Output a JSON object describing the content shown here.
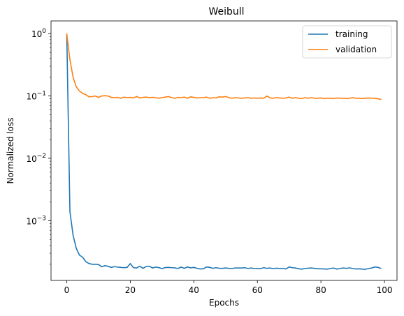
{
  "chart_data": {
    "type": "line",
    "title": "Weibull",
    "xlabel": "Epochs",
    "ylabel": "Normalized loss",
    "xlim": [
      -4.95,
      103.95
    ],
    "ylim": [
      0.00011,
      1.6
    ],
    "yscale": "log",
    "xticks": [
      0,
      20,
      40,
      60,
      80,
      100
    ],
    "yticks": [
      {
        "value": 0.001,
        "base": "10",
        "exp": "−3"
      },
      {
        "value": 0.01,
        "base": "10",
        "exp": "−2"
      },
      {
        "value": 0.1,
        "base": "10",
        "exp": "−1"
      },
      {
        "value": 1,
        "base": "10",
        "exp": "0"
      }
    ],
    "grid": false,
    "legend": "top-right",
    "series": [
      {
        "name": "training",
        "color": "#1f77b4",
        "x": [
          0,
          1,
          2,
          3,
          4,
          5,
          6,
          7,
          8,
          9,
          10,
          11,
          12,
          13,
          14,
          15,
          16,
          17,
          18,
          19,
          20,
          21,
          22,
          23,
          24,
          25,
          26,
          27,
          28,
          29,
          30,
          31,
          32,
          33,
          34,
          35,
          36,
          37,
          38,
          39,
          40,
          41,
          42,
          43,
          44,
          45,
          46,
          47,
          48,
          49,
          50,
          51,
          52,
          53,
          54,
          55,
          56,
          57,
          58,
          59,
          60,
          61,
          62,
          63,
          64,
          65,
          66,
          67,
          68,
          69,
          70,
          71,
          72,
          73,
          74,
          75,
          76,
          77,
          78,
          79,
          80,
          81,
          82,
          83,
          84,
          85,
          86,
          87,
          88,
          89,
          90,
          91,
          92,
          93,
          94,
          95,
          96,
          97,
          98,
          99
        ],
        "y": [
          1.0,
          0.0014,
          0.00058,
          0.00036,
          0.00028,
          0.00026,
          0.00022,
          0.000205,
          0.0002,
          0.0002,
          0.000198,
          0.000182,
          0.00019,
          0.000185,
          0.000178,
          0.000183,
          0.00018,
          0.000178,
          0.000176,
          0.000178,
          0.000205,
          0.000176,
          0.000174,
          0.000186,
          0.000172,
          0.000184,
          0.000186,
          0.000174,
          0.00018,
          0.000177,
          0.00017,
          0.000177,
          0.000178,
          0.000176,
          0.000175,
          0.000171,
          0.00018,
          0.000172,
          0.000181,
          0.000175,
          0.000178,
          0.000172,
          0.000168,
          0.000169,
          0.000181,
          0.000178,
          0.000172,
          0.000176,
          0.000172,
          0.000172,
          0.000174,
          0.000172,
          0.000171,
          0.000174,
          0.000174,
          0.000174,
          0.000176,
          0.000171,
          0.000174,
          0.000171,
          0.00017,
          0.00017,
          0.000176,
          0.000172,
          0.000174,
          0.00017,
          0.000173,
          0.000171,
          0.000172,
          0.000168,
          0.000181,
          0.000176,
          0.000174,
          0.000169,
          0.000167,
          0.000171,
          0.000173,
          0.000174,
          0.000172,
          0.000169,
          0.000169,
          0.000168,
          0.000167,
          0.000171,
          0.000174,
          0.000167,
          0.000171,
          0.000174,
          0.000172,
          0.000175,
          0.000171,
          0.000168,
          0.000169,
          0.000167,
          0.000166,
          0.000171,
          0.000174,
          0.000181,
          0.000178,
          0.000171
        ]
      },
      {
        "name": "validation",
        "color": "#ff7f0e",
        "x": [
          0,
          1,
          2,
          3,
          4,
          5,
          6,
          7,
          8,
          9,
          10,
          11,
          12,
          13,
          14,
          15,
          16,
          17,
          18,
          19,
          20,
          21,
          22,
          23,
          24,
          25,
          26,
          27,
          28,
          29,
          30,
          31,
          32,
          33,
          34,
          35,
          36,
          37,
          38,
          39,
          40,
          41,
          42,
          43,
          44,
          45,
          46,
          47,
          48,
          49,
          50,
          51,
          52,
          53,
          54,
          55,
          56,
          57,
          58,
          59,
          60,
          61,
          62,
          63,
          64,
          65,
          66,
          67,
          68,
          69,
          70,
          71,
          72,
          73,
          74,
          75,
          76,
          77,
          78,
          79,
          80,
          81,
          82,
          83,
          84,
          85,
          86,
          87,
          88,
          89,
          90,
          91,
          92,
          93,
          94,
          95,
          96,
          97,
          98,
          99
        ],
        "y": [
          1.0,
          0.38,
          0.2,
          0.14,
          0.12,
          0.11,
          0.105,
          0.097,
          0.098,
          0.1,
          0.095,
          0.1,
          0.101,
          0.1,
          0.095,
          0.094,
          0.095,
          0.092,
          0.096,
          0.094,
          0.095,
          0.093,
          0.098,
          0.093,
          0.095,
          0.096,
          0.094,
          0.095,
          0.094,
          0.092,
          0.094,
          0.096,
          0.098,
          0.094,
          0.092,
          0.095,
          0.094,
          0.096,
          0.092,
          0.097,
          0.095,
          0.093,
          0.094,
          0.094,
          0.096,
          0.092,
          0.094,
          0.093,
          0.097,
          0.096,
          0.098,
          0.094,
          0.092,
          0.094,
          0.093,
          0.092,
          0.093,
          0.094,
          0.092,
          0.093,
          0.092,
          0.093,
          0.092,
          0.1,
          0.093,
          0.092,
          0.094,
          0.093,
          0.092,
          0.093,
          0.096,
          0.092,
          0.094,
          0.092,
          0.091,
          0.094,
          0.092,
          0.094,
          0.092,
          0.092,
          0.093,
          0.091,
          0.092,
          0.092,
          0.091,
          0.093,
          0.092,
          0.092,
          0.091,
          0.092,
          0.094,
          0.092,
          0.092,
          0.091,
          0.092,
          0.093,
          0.092,
          0.092,
          0.09,
          0.088
        ]
      }
    ]
  }
}
